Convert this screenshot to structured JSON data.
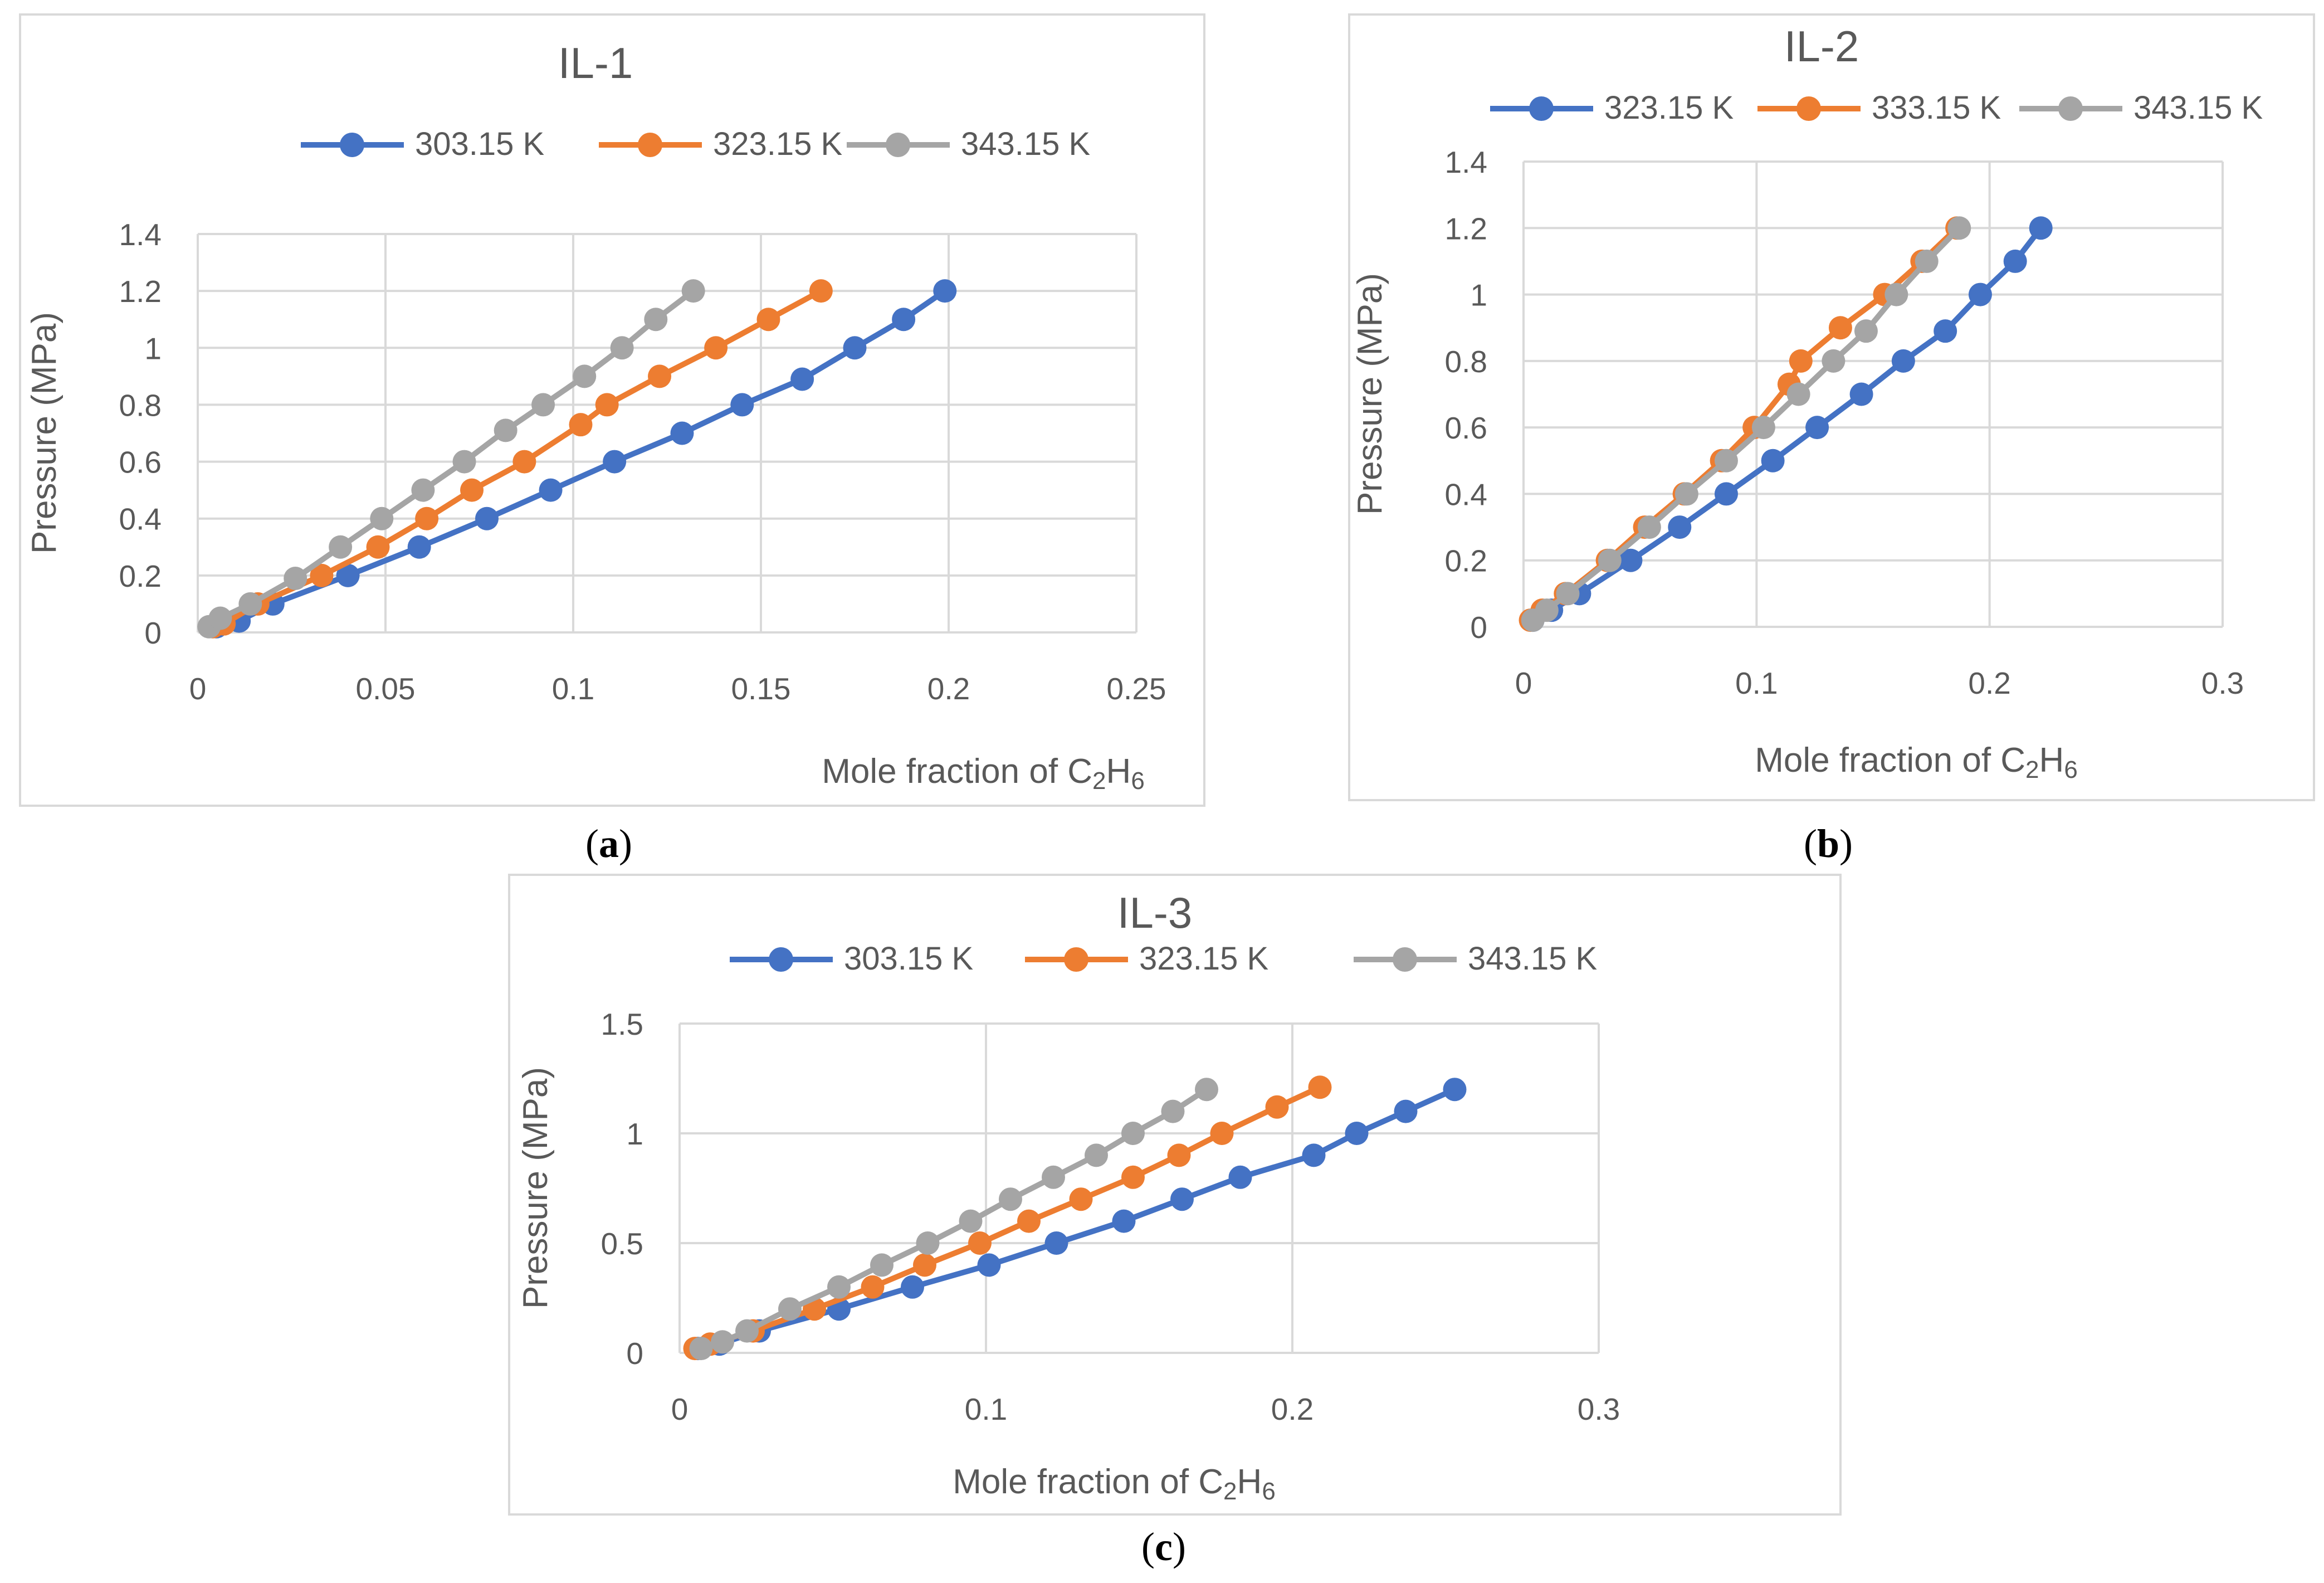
{
  "colors": {
    "series_blue": "#4472C4",
    "series_orange": "#ED7D31",
    "series_gray": "#A5A5A5",
    "grid": "#D9D9D9",
    "frame": "#D9D9D9",
    "text": "#595959"
  },
  "chart_data": [
    {
      "id": "a",
      "type": "line",
      "title": "IL-1",
      "panel_label": "a",
      "xlabel": "Mole fraction of C",
      "xlabel_sub1": "2",
      "xlabel_mid": "H",
      "xlabel_sub2": "6",
      "ylabel": "Pressure (MPa)",
      "xlim": [
        0,
        0.25
      ],
      "ylim": [
        0,
        1.4
      ],
      "xticks": [
        0,
        0.05,
        0.1,
        0.15,
        0.2,
        0.25
      ],
      "xtick_labels": [
        "0",
        "0.05",
        "0.1",
        "0.15",
        "0.2",
        "0.25"
      ],
      "yticks": [
        0,
        0.2,
        0.4,
        0.6,
        0.8,
        1.0,
        1.2,
        1.4
      ],
      "ytick_labels": [
        "0",
        "0.2",
        "0.4",
        "0.6",
        "0.8",
        "1",
        "1.2",
        "1.4"
      ],
      "legend": "top",
      "series": [
        {
          "name": "303.15 K",
          "color": "#4472C4",
          "x": [
            0.005,
            0.011,
            0.02,
            0.04,
            0.059,
            0.077,
            0.094,
            0.111,
            0.129,
            0.145,
            0.161,
            0.175,
            0.188,
            0.199
          ],
          "y": [
            0.02,
            0.04,
            0.1,
            0.2,
            0.3,
            0.4,
            0.5,
            0.6,
            0.7,
            0.8,
            0.89,
            1.0,
            1.1,
            1.2
          ]
        },
        {
          "name": "323.15 K",
          "color": "#ED7D31",
          "x": [
            0.004,
            0.007,
            0.016,
            0.033,
            0.048,
            0.061,
            0.073,
            0.087,
            0.102,
            0.109,
            0.123,
            0.138,
            0.152,
            0.166
          ],
          "y": [
            0.02,
            0.03,
            0.1,
            0.2,
            0.3,
            0.4,
            0.5,
            0.6,
            0.73,
            0.8,
            0.9,
            1.0,
            1.1,
            1.2
          ]
        },
        {
          "name": "343.15 K",
          "color": "#A5A5A5",
          "x": [
            0.003,
            0.006,
            0.014,
            0.026,
            0.038,
            0.049,
            0.06,
            0.071,
            0.082,
            0.092,
            0.103,
            0.113,
            0.122,
            0.132
          ],
          "y": [
            0.02,
            0.05,
            0.1,
            0.19,
            0.3,
            0.4,
            0.5,
            0.6,
            0.71,
            0.8,
            0.9,
            1.0,
            1.1,
            1.2
          ]
        }
      ]
    },
    {
      "id": "b",
      "type": "line",
      "title": "IL-2",
      "panel_label": "b",
      "xlabel": "Mole fraction of C",
      "xlabel_sub1": "2",
      "xlabel_mid": "H",
      "xlabel_sub2": "6",
      "ylabel": "Pressure (MPa)",
      "xlim": [
        0,
        0.3
      ],
      "ylim": [
        0,
        1.4
      ],
      "xticks": [
        0,
        0.1,
        0.2,
        0.3
      ],
      "xtick_labels": [
        "0",
        "0.1",
        "0.2",
        "0.3"
      ],
      "yticks": [
        0,
        0.2,
        0.4,
        0.6,
        0.8,
        1.0,
        1.2,
        1.4
      ],
      "ytick_labels": [
        "0",
        "0.2",
        "0.4",
        "0.6",
        "0.8",
        "1",
        "1.2",
        "1.4"
      ],
      "legend": "top",
      "series": [
        {
          "name": "323.15 K",
          "color": "#4472C4",
          "x": [
            0.004,
            0.012,
            0.024,
            0.046,
            0.067,
            0.087,
            0.107,
            0.126,
            0.145,
            0.163,
            0.181,
            0.196,
            0.211,
            0.222
          ],
          "y": [
            0.02,
            0.05,
            0.1,
            0.2,
            0.3,
            0.4,
            0.5,
            0.6,
            0.7,
            0.8,
            0.89,
            1.0,
            1.1,
            1.2
          ]
        },
        {
          "name": "333.15 K",
          "color": "#ED7D31",
          "x": [
            0.003,
            0.008,
            0.018,
            0.036,
            0.052,
            0.069,
            0.085,
            0.099,
            0.114,
            0.119,
            0.136,
            0.155,
            0.171,
            0.186
          ],
          "y": [
            0.02,
            0.05,
            0.1,
            0.2,
            0.3,
            0.4,
            0.5,
            0.6,
            0.73,
            0.8,
            0.9,
            1.0,
            1.1,
            1.2
          ]
        },
        {
          "name": "343.15 K",
          "color": "#A5A5A5",
          "x": [
            0.004,
            0.01,
            0.019,
            0.037,
            0.054,
            0.07,
            0.087,
            0.103,
            0.118,
            0.133,
            0.147,
            0.16,
            0.173,
            0.187
          ],
          "y": [
            0.02,
            0.05,
            0.1,
            0.2,
            0.3,
            0.4,
            0.5,
            0.6,
            0.7,
            0.8,
            0.89,
            1.0,
            1.1,
            1.2
          ]
        }
      ]
    },
    {
      "id": "c",
      "type": "line",
      "title": "IL-3",
      "panel_label": "c",
      "xlabel": "Mole fraction of C",
      "xlabel_sub1": "2",
      "xlabel_mid": "H",
      "xlabel_sub2": "6",
      "ylabel": "Pressure (MPa)",
      "xlim": [
        0,
        0.3
      ],
      "ylim": [
        0,
        1.5
      ],
      "xticks": [
        0,
        0.1,
        0.2,
        0.3
      ],
      "xtick_labels": [
        "0",
        "0.1",
        "0.2",
        "0.3"
      ],
      "yticks": [
        0,
        0.5,
        1.0,
        1.5
      ],
      "ytick_labels": [
        "0",
        "0.5",
        "1",
        "1.5"
      ],
      "legend": "top",
      "series": [
        {
          "name": "303.15 K",
          "color": "#4472C4",
          "x": [
            0.006,
            0.013,
            0.026,
            0.052,
            0.076,
            0.101,
            0.123,
            0.145,
            0.164,
            0.183,
            0.207,
            0.221,
            0.237,
            0.253
          ],
          "y": [
            0.02,
            0.04,
            0.1,
            0.2,
            0.3,
            0.4,
            0.5,
            0.6,
            0.7,
            0.8,
            0.9,
            1.0,
            1.1,
            1.2
          ]
        },
        {
          "name": "323.15 K",
          "color": "#ED7D31",
          "x": [
            0.005,
            0.01,
            0.024,
            0.044,
            0.063,
            0.08,
            0.098,
            0.114,
            0.131,
            0.148,
            0.163,
            0.177,
            0.195,
            0.209
          ],
          "y": [
            0.02,
            0.04,
            0.1,
            0.2,
            0.3,
            0.4,
            0.5,
            0.6,
            0.7,
            0.8,
            0.9,
            1.0,
            1.12,
            1.21
          ]
        },
        {
          "name": "343.15 K",
          "color": "#A5A5A5",
          "x": [
            0.007,
            0.014,
            0.022,
            0.036,
            0.052,
            0.066,
            0.081,
            0.095,
            0.108,
            0.122,
            0.136,
            0.148,
            0.161,
            0.172
          ],
          "y": [
            0.02,
            0.05,
            0.1,
            0.2,
            0.3,
            0.4,
            0.5,
            0.6,
            0.7,
            0.8,
            0.9,
            1.0,
            1.1,
            1.2
          ]
        }
      ]
    }
  ]
}
